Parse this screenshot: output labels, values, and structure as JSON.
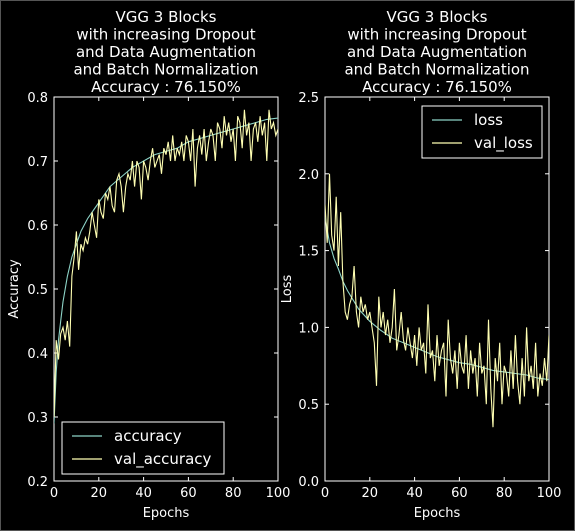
{
  "colors": {
    "background": "#000000",
    "axes": "#ffffff",
    "train": "#8dd3c7",
    "val": "#ffffb3"
  },
  "chart_data": [
    {
      "type": "line",
      "title": [
        "VGG 3 Blocks",
        "with increasing Dropout",
        "and Data Augmentation",
        "and Batch Normalization",
        "Accuracy : 76.150%"
      ],
      "xlabel": "Epochs",
      "ylabel": "Accuracy",
      "xlim": [
        0,
        100
      ],
      "ylim": [
        0.2,
        0.8
      ],
      "xticks": [
        "0",
        "20",
        "40",
        "60",
        "80",
        "100"
      ],
      "yticks": [
        "0.2",
        "0.3",
        "0.4",
        "0.5",
        "0.6",
        "0.7",
        "0.8"
      ],
      "legend_position": "lower left",
      "series": [
        {
          "name": "accuracy",
          "color": "#8dd3c7",
          "x": [
            0,
            1,
            2,
            3,
            4,
            5,
            6,
            8,
            10,
            12,
            15,
            18,
            20,
            25,
            30,
            35,
            40,
            45,
            50,
            55,
            60,
            65,
            70,
            75,
            80,
            85,
            90,
            95,
            100
          ],
          "y": [
            0.29,
            0.37,
            0.42,
            0.45,
            0.48,
            0.5,
            0.52,
            0.55,
            0.57,
            0.59,
            0.61,
            0.625,
            0.635,
            0.66,
            0.675,
            0.69,
            0.7,
            0.71,
            0.715,
            0.72,
            0.73,
            0.735,
            0.74,
            0.745,
            0.75,
            0.755,
            0.76,
            0.765,
            0.767
          ]
        },
        {
          "name": "val_accuracy",
          "color": "#ffffb3",
          "x": [
            0,
            1,
            2,
            3,
            4,
            5,
            6,
            7,
            8,
            9,
            10,
            11,
            12,
            13,
            14,
            15,
            16,
            17,
            18,
            19,
            20,
            21,
            22,
            23,
            24,
            25,
            26,
            27,
            28,
            29,
            30,
            31,
            32,
            33,
            34,
            35,
            36,
            37,
            38,
            39,
            40,
            41,
            42,
            43,
            44,
            45,
            46,
            47,
            48,
            49,
            50,
            51,
            52,
            53,
            54,
            55,
            56,
            57,
            58,
            59,
            60,
            61,
            62,
            63,
            64,
            65,
            66,
            67,
            68,
            69,
            70,
            71,
            72,
            73,
            74,
            75,
            76,
            77,
            78,
            79,
            80,
            81,
            82,
            83,
            84,
            85,
            86,
            87,
            88,
            89,
            90,
            91,
            92,
            93,
            94,
            95,
            96,
            97,
            98,
            99,
            100
          ],
          "y": [
            0.3,
            0.42,
            0.39,
            0.43,
            0.44,
            0.42,
            0.45,
            0.41,
            0.52,
            0.55,
            0.59,
            0.53,
            0.57,
            0.56,
            0.58,
            0.57,
            0.59,
            0.62,
            0.6,
            0.58,
            0.64,
            0.62,
            0.61,
            0.65,
            0.64,
            0.66,
            0.63,
            0.62,
            0.67,
            0.68,
            0.66,
            0.62,
            0.66,
            0.68,
            0.67,
            0.7,
            0.66,
            0.7,
            0.69,
            0.64,
            0.7,
            0.69,
            0.67,
            0.7,
            0.72,
            0.69,
            0.7,
            0.71,
            0.68,
            0.72,
            0.71,
            0.73,
            0.7,
            0.74,
            0.7,
            0.72,
            0.71,
            0.73,
            0.7,
            0.74,
            0.73,
            0.7,
            0.75,
            0.66,
            0.72,
            0.74,
            0.71,
            0.75,
            0.7,
            0.73,
            0.75,
            0.74,
            0.7,
            0.76,
            0.75,
            0.72,
            0.77,
            0.74,
            0.76,
            0.73,
            0.75,
            0.7,
            0.77,
            0.76,
            0.72,
            0.78,
            0.74,
            0.76,
            0.7,
            0.75,
            0.76,
            0.73,
            0.77,
            0.74,
            0.76,
            0.7,
            0.78,
            0.75,
            0.76,
            0.74,
            0.75
          ]
        }
      ]
    },
    {
      "type": "line",
      "title": [
        "VGG 3 Blocks",
        "with increasing Dropout",
        "and Data Augmentation",
        "and Batch Normalization",
        "Accuracy : 76.150%"
      ],
      "xlabel": "Epochs",
      "ylabel": "Loss",
      "xlim": [
        0,
        100
      ],
      "ylim": [
        0.0,
        2.5
      ],
      "xticks": [
        "0",
        "20",
        "40",
        "60",
        "80",
        "100"
      ],
      "yticks": [
        "0.0",
        "0.5",
        "1.0",
        "1.5",
        "2.0",
        "2.5"
      ],
      "legend_position": "upper right",
      "series": [
        {
          "name": "loss",
          "color": "#8dd3c7",
          "x": [
            0,
            2,
            4,
            6,
            8,
            10,
            15,
            20,
            25,
            30,
            35,
            40,
            45,
            50,
            55,
            60,
            65,
            70,
            75,
            80,
            85,
            90,
            95,
            100
          ],
          "y": [
            1.72,
            1.55,
            1.45,
            1.38,
            1.3,
            1.24,
            1.12,
            1.04,
            0.98,
            0.93,
            0.9,
            0.87,
            0.84,
            0.81,
            0.79,
            0.77,
            0.76,
            0.74,
            0.72,
            0.71,
            0.7,
            0.69,
            0.67,
            0.66
          ]
        },
        {
          "name": "val_loss",
          "color": "#ffffb3",
          "x": [
            0,
            1,
            2,
            3,
            4,
            5,
            6,
            7,
            8,
            9,
            10,
            11,
            12,
            13,
            14,
            15,
            16,
            17,
            18,
            19,
            20,
            21,
            22,
            23,
            24,
            25,
            26,
            27,
            28,
            29,
            30,
            31,
            32,
            33,
            34,
            35,
            36,
            37,
            38,
            39,
            40,
            41,
            42,
            43,
            44,
            45,
            46,
            47,
            48,
            49,
            50,
            51,
            52,
            53,
            54,
            55,
            56,
            57,
            58,
            59,
            60,
            61,
            62,
            63,
            64,
            65,
            66,
            67,
            68,
            69,
            70,
            71,
            72,
            73,
            74,
            75,
            76,
            77,
            78,
            79,
            80,
            81,
            82,
            83,
            84,
            85,
            86,
            87,
            88,
            89,
            90,
            91,
            92,
            93,
            94,
            95,
            96,
            97,
            98,
            99,
            100
          ],
          "y": [
            1.8,
            1.55,
            2.0,
            1.6,
            1.5,
            1.85,
            1.4,
            1.75,
            1.3,
            1.1,
            1.05,
            1.15,
            1.2,
            1.4,
            1.1,
            1.0,
            1.2,
            1.1,
            1.15,
            1.05,
            1.1,
            1.0,
            0.9,
            0.62,
            1.2,
            1.0,
            1.1,
            0.95,
            1.05,
            0.9,
            1.0,
            1.25,
            0.85,
            0.95,
            1.1,
            0.92,
            0.85,
            1.0,
            0.9,
            0.8,
            0.95,
            0.75,
            1.0,
            0.85,
            0.9,
            0.7,
            1.15,
            0.8,
            0.85,
            0.65,
            0.95,
            0.75,
            0.85,
            0.9,
            0.55,
            1.05,
            0.8,
            0.7,
            0.85,
            0.6,
            0.9,
            0.75,
            0.7,
            0.95,
            0.6,
            0.85,
            0.7,
            0.8,
            0.55,
            0.9,
            0.7,
            0.75,
            0.5,
            1.05,
            0.6,
            0.35,
            0.8,
            0.65,
            0.9,
            0.5,
            0.75,
            0.7,
            0.55,
            0.85,
            0.6,
            0.95,
            0.65,
            0.5,
            0.8,
            0.55,
            1.0,
            0.65,
            0.75,
            0.6,
            0.9,
            0.55,
            0.7,
            0.62,
            0.8,
            0.65,
            0.95
          ]
        }
      ]
    }
  ]
}
